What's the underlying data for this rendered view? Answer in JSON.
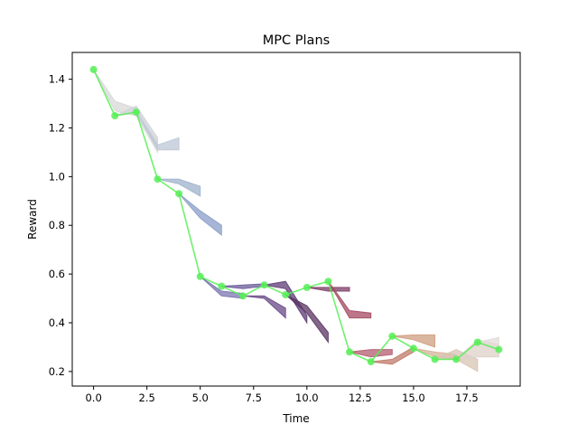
{
  "chart_data": {
    "type": "line",
    "title": "MPC Plans",
    "xlabel": "Time",
    "ylabel": "Reward",
    "xlim": [
      -1.0,
      20.0
    ],
    "ylim": [
      0.14,
      1.51
    ],
    "grid": false,
    "x_ticks": [
      0.0,
      2.5,
      5.0,
      7.5,
      10.0,
      12.5,
      15.0,
      17.5
    ],
    "x_tick_labels": [
      "0.0",
      "2.5",
      "5.0",
      "7.5",
      "10.0",
      "12.5",
      "15.0",
      "17.5"
    ],
    "y_ticks": [
      0.2,
      0.4,
      0.6,
      0.8,
      1.0,
      1.2,
      1.4
    ],
    "y_tick_labels": [
      "0.2",
      "0.4",
      "0.6",
      "0.8",
      "1.0",
      "1.2",
      "1.4"
    ],
    "actual_series": {
      "color": "#55ee55",
      "x": [
        0,
        1,
        2,
        3,
        4,
        5,
        6,
        7,
        8,
        9,
        10,
        11,
        12,
        13,
        14,
        15,
        16,
        17,
        18,
        19
      ],
      "y": [
        1.44,
        1.25,
        1.265,
        0.99,
        0.93,
        0.59,
        0.55,
        0.51,
        0.555,
        0.515,
        0.545,
        0.57,
        0.28,
        0.24,
        0.345,
        0.295,
        0.25,
        0.25,
        0.32,
        0.29
      ]
    },
    "plans": [
      {
        "start": 0,
        "color": "#d8d8d8",
        "x": [
          0,
          1,
          2,
          3
        ],
        "lower": [
          1.44,
          1.27,
          1.25,
          1.1
        ],
        "upper": [
          1.44,
          1.31,
          1.28,
          1.14
        ]
      },
      {
        "start": 1,
        "color": "#d2d4d8",
        "x": [
          1,
          2,
          3
        ],
        "lower": [
          1.25,
          1.26,
          1.12
        ],
        "upper": [
          1.25,
          1.29,
          1.16
        ]
      },
      {
        "start": 2,
        "color": "#bcc8d6",
        "x": [
          2,
          3,
          4
        ],
        "lower": [
          1.265,
          1.11,
          1.11
        ],
        "upper": [
          1.265,
          1.13,
          1.16
        ]
      },
      {
        "start": 3,
        "color": "#9eb2cc",
        "x": [
          3,
          4,
          5
        ],
        "lower": [
          0.99,
          0.97,
          0.92
        ],
        "upper": [
          0.99,
          0.99,
          0.96
        ]
      },
      {
        "start": 4,
        "color": "#8a9ec8",
        "x": [
          4,
          5,
          6
        ],
        "lower": [
          0.93,
          0.83,
          0.76
        ],
        "upper": [
          0.93,
          0.86,
          0.8
        ]
      },
      {
        "start": 5,
        "color": "#7a76b0",
        "x": [
          5,
          6,
          7
        ],
        "lower": [
          0.59,
          0.51,
          0.5
        ],
        "upper": [
          0.59,
          0.53,
          0.52
        ]
      },
      {
        "start": 6,
        "color": "#6c5c98",
        "x": [
          6,
          7,
          8
        ],
        "lower": [
          0.55,
          0.54,
          0.55
        ],
        "upper": [
          0.55,
          0.555,
          0.56
        ]
      },
      {
        "start": 7,
        "color": "#6a4a88",
        "x": [
          7,
          8,
          9
        ],
        "lower": [
          0.51,
          0.5,
          0.42
        ],
        "upper": [
          0.51,
          0.51,
          0.46
        ]
      },
      {
        "start": 8,
        "color": "#5e3c74",
        "x": [
          8,
          9,
          10
        ],
        "lower": [
          0.555,
          0.54,
          0.4
        ],
        "upper": [
          0.555,
          0.57,
          0.43
        ]
      },
      {
        "start": 9,
        "color": "#5a3462",
        "x": [
          9,
          10,
          11
        ],
        "lower": [
          0.515,
          0.44,
          0.32
        ],
        "upper": [
          0.515,
          0.47,
          0.36
        ]
      },
      {
        "start": 10,
        "color": "#7e3e66",
        "x": [
          10,
          11,
          12
        ],
        "lower": [
          0.545,
          0.53,
          0.53
        ],
        "upper": [
          0.545,
          0.545,
          0.545
        ]
      },
      {
        "start": 11,
        "color": "#a44a62",
        "x": [
          11,
          12,
          13
        ],
        "lower": [
          0.57,
          0.42,
          0.42
        ],
        "upper": [
          0.57,
          0.45,
          0.44
        ]
      },
      {
        "start": 12,
        "color": "#b45c70",
        "x": [
          12,
          13,
          14
        ],
        "lower": [
          0.28,
          0.26,
          0.27
        ],
        "upper": [
          0.28,
          0.29,
          0.29
        ]
      },
      {
        "start": 13,
        "color": "#c07a6a",
        "x": [
          13,
          14,
          15
        ],
        "lower": [
          0.24,
          0.23,
          0.28
        ],
        "upper": [
          0.24,
          0.25,
          0.3
        ]
      },
      {
        "start": 14,
        "color": "#cf9e80",
        "x": [
          14,
          15,
          16
        ],
        "lower": [
          0.345,
          0.33,
          0.3
        ],
        "upper": [
          0.345,
          0.35,
          0.35
        ]
      },
      {
        "start": 15,
        "color": "#d6b49a",
        "x": [
          15,
          16,
          17
        ],
        "lower": [
          0.295,
          0.26,
          0.25
        ],
        "upper": [
          0.295,
          0.28,
          0.27
        ]
      },
      {
        "start": 16,
        "color": "#d8c4b4",
        "x": [
          16,
          17,
          18
        ],
        "lower": [
          0.25,
          0.25,
          0.2
        ],
        "upper": [
          0.25,
          0.29,
          0.25
        ]
      },
      {
        "start": 17,
        "color": "#ddd2ca",
        "x": [
          17,
          18,
          19
        ],
        "lower": [
          0.25,
          0.26,
          0.26
        ],
        "upper": [
          0.25,
          0.33,
          0.31
        ]
      },
      {
        "start": 18,
        "color": "#e2dcd8",
        "x": [
          18,
          19
        ],
        "lower": [
          0.32,
          0.28
        ],
        "upper": [
          0.32,
          0.34
        ]
      }
    ]
  }
}
